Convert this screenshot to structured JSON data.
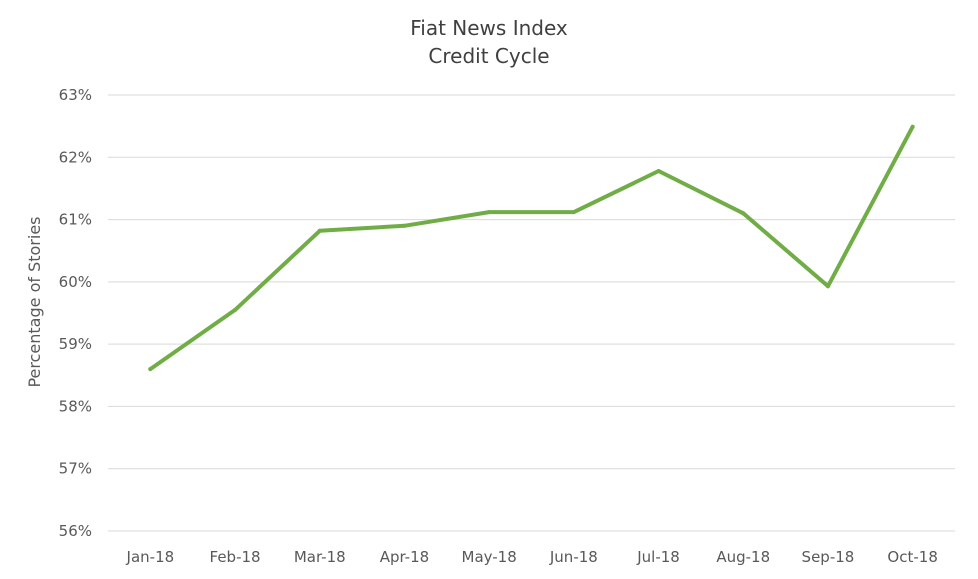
{
  "chart_data": {
    "type": "line",
    "title": "Fiat News Index",
    "subtitle": "Credit Cycle",
    "xlabel": "",
    "ylabel": "Percentage of Stories",
    "categories": [
      "Jan-18",
      "Feb-18",
      "Mar-18",
      "Apr-18",
      "May-18",
      "Jun-18",
      "Jul-18",
      "Aug-18",
      "Sep-18",
      "Oct-18"
    ],
    "series": [
      {
        "color": "#70ad47",
        "values": [
          58.6,
          59.55,
          60.82,
          60.9,
          61.12,
          61.12,
          61.78,
          61.1,
          59.93,
          62.49
        ]
      }
    ],
    "ylim": [
      56,
      63
    ],
    "yticks": [
      56,
      57,
      58,
      59,
      60,
      61,
      62,
      63
    ],
    "ytick_labels": [
      "56%",
      "57%",
      "58%",
      "59%",
      "60%",
      "61%",
      "62%",
      "63%"
    ],
    "grid": true,
    "legend": "none"
  }
}
